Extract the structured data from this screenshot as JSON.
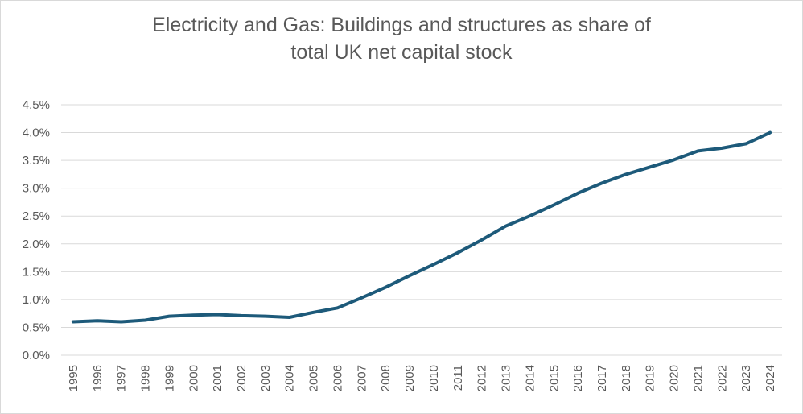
{
  "chart_data": {
    "type": "line",
    "title_lines": [
      "Electricity and Gas: Buildings and structures as share of",
      "total UK net capital stock"
    ],
    "xlabel": "",
    "ylabel": "",
    "x": [
      "1995",
      "1996",
      "1997",
      "1998",
      "1999",
      "2000",
      "2001",
      "2002",
      "2003",
      "2004",
      "2005",
      "2006",
      "2007",
      "2008",
      "2009",
      "2010",
      "2011",
      "2012",
      "2013",
      "2014",
      "2015",
      "2016",
      "2017",
      "2018",
      "2019",
      "2020",
      "2021",
      "2022",
      "2023",
      "2024"
    ],
    "series": [
      {
        "values": [
          0.6,
          0.62,
          0.6,
          0.63,
          0.7,
          0.72,
          0.73,
          0.71,
          0.7,
          0.68,
          0.77,
          0.85,
          1.03,
          1.22,
          1.43,
          1.63,
          1.84,
          2.07,
          2.32,
          2.5,
          2.7,
          2.91,
          3.09,
          3.25,
          3.38,
          3.51,
          3.67,
          3.72,
          3.8,
          4.0
        ],
        "color": "#1d5a7a"
      }
    ],
    "yticks": [
      "0.0%",
      "0.5%",
      "1.0%",
      "1.5%",
      "2.0%",
      "2.5%",
      "3.0%",
      "3.5%",
      "4.0%",
      "4.5%"
    ],
    "ylim": [
      0,
      4.5
    ],
    "grid": true,
    "legend": "none",
    "colors": {
      "line": "#1d5a7a",
      "grid": "#d9d9d9",
      "text": "#595959"
    }
  }
}
